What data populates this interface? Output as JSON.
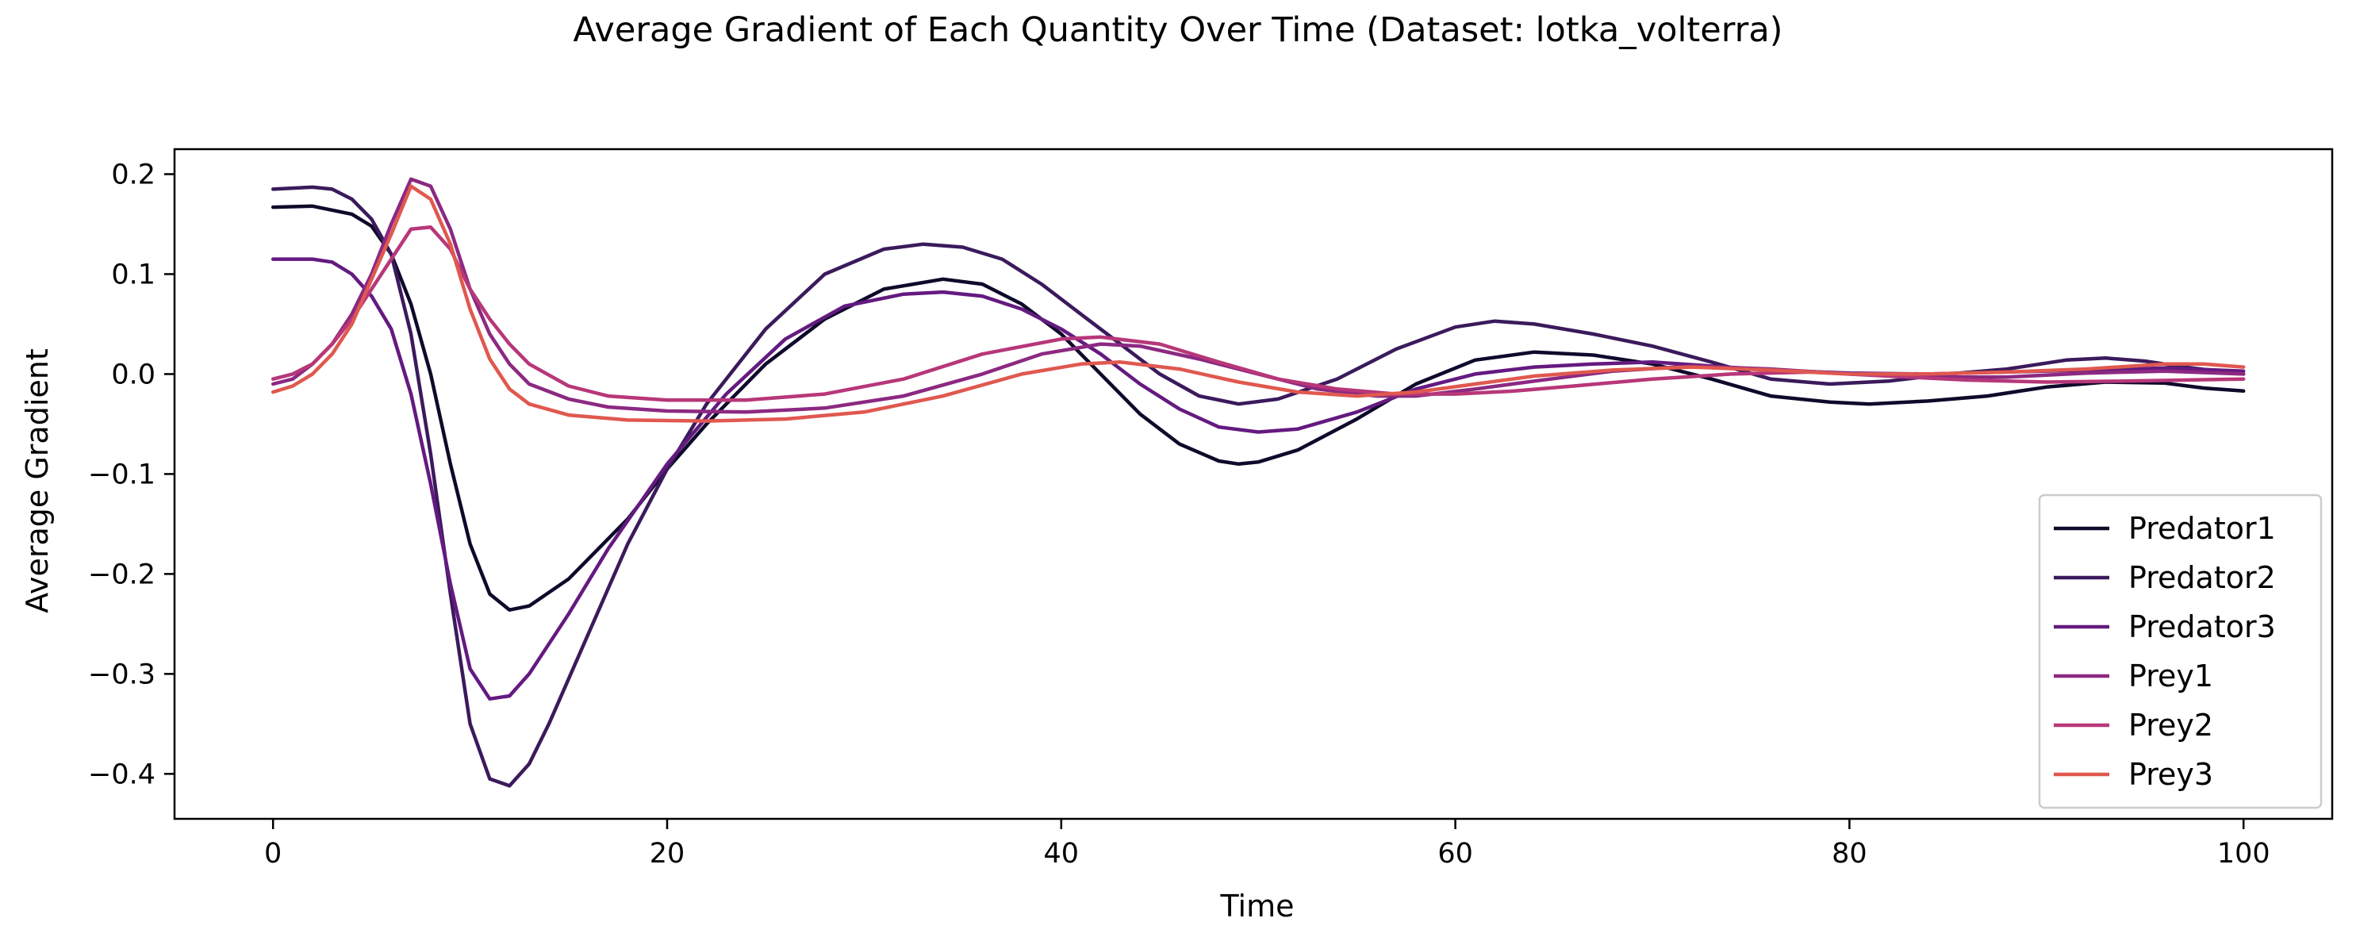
{
  "chart_data": {
    "type": "line",
    "title": "Average Gradient of Each Quantity Over Time (Dataset: lotka_volterra)",
    "xlabel": "Time",
    "ylabel": "Average Gradient",
    "xlim": [
      -5,
      104.5
    ],
    "ylim": [
      -0.445,
      0.225
    ],
    "xticks": [
      0,
      20,
      40,
      60,
      80,
      100
    ],
    "xtick_labels": [
      "0",
      "20",
      "40",
      "60",
      "80",
      "100"
    ],
    "yticks": [
      0.2,
      0.1,
      0.0,
      -0.1,
      -0.2,
      -0.3,
      -0.4
    ],
    "ytick_labels": [
      "0.2",
      "0.1",
      "0.0",
      "−0.1",
      "−0.2",
      "−0.3",
      "−0.4"
    ],
    "grid": false,
    "legend_position": "lower right",
    "series": [
      {
        "name": "Predator1",
        "color": "#0f0a2b",
        "points": [
          [
            0,
            0.167
          ],
          [
            2,
            0.168
          ],
          [
            4,
            0.16
          ],
          [
            5,
            0.148
          ],
          [
            6,
            0.12
          ],
          [
            7,
            0.07
          ],
          [
            8,
            0.0
          ],
          [
            9,
            -0.09
          ],
          [
            10,
            -0.17
          ],
          [
            11,
            -0.22
          ],
          [
            12,
            -0.236
          ],
          [
            13,
            -0.232
          ],
          [
            15,
            -0.205
          ],
          [
            18,
            -0.145
          ],
          [
            20,
            -0.095
          ],
          [
            22,
            -0.05
          ],
          [
            25,
            0.01
          ],
          [
            28,
            0.055
          ],
          [
            31,
            0.085
          ],
          [
            34,
            0.095
          ],
          [
            36,
            0.09
          ],
          [
            38,
            0.07
          ],
          [
            40,
            0.04
          ],
          [
            42,
            0.0
          ],
          [
            44,
            -0.04
          ],
          [
            46,
            -0.07
          ],
          [
            48,
            -0.087
          ],
          [
            49,
            -0.09
          ],
          [
            50,
            -0.088
          ],
          [
            52,
            -0.076
          ],
          [
            55,
            -0.045
          ],
          [
            58,
            -0.01
          ],
          [
            61,
            0.014
          ],
          [
            64,
            0.022
          ],
          [
            67,
            0.019
          ],
          [
            70,
            0.01
          ],
          [
            73,
            -0.005
          ],
          [
            76,
            -0.022
          ],
          [
            79,
            -0.028
          ],
          [
            81,
            -0.03
          ],
          [
            84,
            -0.027
          ],
          [
            87,
            -0.022
          ],
          [
            90,
            -0.013
          ],
          [
            93,
            -0.008
          ],
          [
            96,
            -0.009
          ],
          [
            98,
            -0.014
          ],
          [
            100,
            -0.017
          ]
        ]
      },
      {
        "name": "Predator2",
        "color": "#3b1a5c",
        "points": [
          [
            0,
            0.185
          ],
          [
            2,
            0.187
          ],
          [
            3,
            0.185
          ],
          [
            4,
            0.175
          ],
          [
            5,
            0.155
          ],
          [
            6,
            0.12
          ],
          [
            7,
            0.04
          ],
          [
            8,
            -0.08
          ],
          [
            9,
            -0.22
          ],
          [
            10,
            -0.35
          ],
          [
            11,
            -0.405
          ],
          [
            12,
            -0.412
          ],
          [
            13,
            -0.39
          ],
          [
            14,
            -0.35
          ],
          [
            16,
            -0.26
          ],
          [
            18,
            -0.17
          ],
          [
            20,
            -0.095
          ],
          [
            22,
            -0.03
          ],
          [
            25,
            0.045
          ],
          [
            28,
            0.1
          ],
          [
            31,
            0.125
          ],
          [
            33,
            0.13
          ],
          [
            35,
            0.127
          ],
          [
            37,
            0.115
          ],
          [
            39,
            0.09
          ],
          [
            41,
            0.06
          ],
          [
            43,
            0.03
          ],
          [
            45,
            0.0
          ],
          [
            47,
            -0.022
          ],
          [
            49,
            -0.03
          ],
          [
            51,
            -0.025
          ],
          [
            54,
            -0.005
          ],
          [
            57,
            0.025
          ],
          [
            60,
            0.047
          ],
          [
            62,
            0.053
          ],
          [
            64,
            0.05
          ],
          [
            67,
            0.04
          ],
          [
            70,
            0.028
          ],
          [
            73,
            0.012
          ],
          [
            76,
            -0.005
          ],
          [
            79,
            -0.01
          ],
          [
            82,
            -0.007
          ],
          [
            85,
            0.0
          ],
          [
            88,
            0.005
          ],
          [
            91,
            0.014
          ],
          [
            93,
            0.016
          ],
          [
            95,
            0.013
          ],
          [
            97,
            0.007
          ],
          [
            100,
            0.0
          ]
        ]
      },
      {
        "name": "Predator3",
        "color": "#641a80",
        "points": [
          [
            0,
            0.115
          ],
          [
            2,
            0.115
          ],
          [
            3,
            0.112
          ],
          [
            4,
            0.1
          ],
          [
            5,
            0.078
          ],
          [
            6,
            0.045
          ],
          [
            7,
            -0.02
          ],
          [
            8,
            -0.11
          ],
          [
            9,
            -0.21
          ],
          [
            10,
            -0.295
          ],
          [
            11,
            -0.325
          ],
          [
            12,
            -0.322
          ],
          [
            13,
            -0.3
          ],
          [
            15,
            -0.24
          ],
          [
            17,
            -0.175
          ],
          [
            20,
            -0.09
          ],
          [
            23,
            -0.02
          ],
          [
            26,
            0.035
          ],
          [
            29,
            0.068
          ],
          [
            32,
            0.08
          ],
          [
            34,
            0.082
          ],
          [
            36,
            0.078
          ],
          [
            38,
            0.065
          ],
          [
            40,
            0.045
          ],
          [
            42,
            0.02
          ],
          [
            44,
            -0.01
          ],
          [
            46,
            -0.035
          ],
          [
            48,
            -0.053
          ],
          [
            50,
            -0.058
          ],
          [
            52,
            -0.055
          ],
          [
            55,
            -0.038
          ],
          [
            58,
            -0.015
          ],
          [
            61,
            0.0
          ],
          [
            64,
            0.007
          ],
          [
            67,
            0.01
          ],
          [
            70,
            0.012
          ],
          [
            73,
            0.008
          ],
          [
            76,
            0.004
          ],
          [
            80,
            0.001
          ],
          [
            84,
            0.0
          ],
          [
            88,
            0.002
          ],
          [
            92,
            0.004
          ],
          [
            96,
            0.006
          ],
          [
            100,
            0.003
          ]
        ]
      },
      {
        "name": "Prey1",
        "color": "#8c2981",
        "points": [
          [
            0,
            -0.01
          ],
          [
            1,
            -0.005
          ],
          [
            2,
            0.01
          ],
          [
            3,
            0.03
          ],
          [
            4,
            0.06
          ],
          [
            5,
            0.1
          ],
          [
            6,
            0.15
          ],
          [
            7,
            0.195
          ],
          [
            8,
            0.188
          ],
          [
            9,
            0.145
          ],
          [
            10,
            0.085
          ],
          [
            11,
            0.04
          ],
          [
            12,
            0.01
          ],
          [
            13,
            -0.01
          ],
          [
            15,
            -0.025
          ],
          [
            17,
            -0.033
          ],
          [
            20,
            -0.037
          ],
          [
            24,
            -0.038
          ],
          [
            28,
            -0.034
          ],
          [
            32,
            -0.022
          ],
          [
            36,
            0.0
          ],
          [
            39,
            0.02
          ],
          [
            42,
            0.03
          ],
          [
            44,
            0.028
          ],
          [
            47,
            0.015
          ],
          [
            50,
            0.0
          ],
          [
            53,
            -0.015
          ],
          [
            56,
            -0.022
          ],
          [
            58,
            -0.022
          ],
          [
            61,
            -0.015
          ],
          [
            64,
            -0.007
          ],
          [
            68,
            0.003
          ],
          [
            72,
            0.008
          ],
          [
            76,
            0.005
          ],
          [
            80,
            0.0
          ],
          [
            84,
            -0.003
          ],
          [
            88,
            -0.003
          ],
          [
            92,
            0.001
          ],
          [
            96,
            0.003
          ],
          [
            100,
            0.0
          ]
        ]
      },
      {
        "name": "Prey2",
        "color": "#b73779",
        "points": [
          [
            0,
            -0.005
          ],
          [
            1,
            0.0
          ],
          [
            2,
            0.01
          ],
          [
            3,
            0.03
          ],
          [
            4,
            0.055
          ],
          [
            5,
            0.085
          ],
          [
            6,
            0.115
          ],
          [
            7,
            0.145
          ],
          [
            8,
            0.147
          ],
          [
            9,
            0.125
          ],
          [
            10,
            0.085
          ],
          [
            11,
            0.055
          ],
          [
            12,
            0.03
          ],
          [
            13,
            0.01
          ],
          [
            15,
            -0.012
          ],
          [
            17,
            -0.022
          ],
          [
            20,
            -0.026
          ],
          [
            24,
            -0.026
          ],
          [
            28,
            -0.02
          ],
          [
            32,
            -0.005
          ],
          [
            36,
            0.02
          ],
          [
            40,
            0.035
          ],
          [
            42,
            0.037
          ],
          [
            45,
            0.03
          ],
          [
            48,
            0.012
          ],
          [
            51,
            -0.005
          ],
          [
            54,
            -0.015
          ],
          [
            57,
            -0.02
          ],
          [
            60,
            -0.02
          ],
          [
            63,
            -0.017
          ],
          [
            66,
            -0.012
          ],
          [
            70,
            -0.005
          ],
          [
            74,
            0.0
          ],
          [
            78,
            0.002
          ],
          [
            82,
            -0.002
          ],
          [
            86,
            -0.006
          ],
          [
            90,
            -0.008
          ],
          [
            94,
            -0.007
          ],
          [
            97,
            -0.006
          ],
          [
            100,
            -0.005
          ]
        ]
      },
      {
        "name": "Prey3",
        "color": "#e0584f",
        "points": [
          [
            0,
            -0.018
          ],
          [
            1,
            -0.012
          ],
          [
            2,
            0.0
          ],
          [
            3,
            0.02
          ],
          [
            4,
            0.05
          ],
          [
            5,
            0.095
          ],
          [
            6,
            0.14
          ],
          [
            7,
            0.188
          ],
          [
            8,
            0.175
          ],
          [
            9,
            0.13
          ],
          [
            10,
            0.065
          ],
          [
            11,
            0.015
          ],
          [
            12,
            -0.015
          ],
          [
            13,
            -0.03
          ],
          [
            15,
            -0.041
          ],
          [
            18,
            -0.046
          ],
          [
            22,
            -0.047
          ],
          [
            26,
            -0.045
          ],
          [
            30,
            -0.038
          ],
          [
            34,
            -0.022
          ],
          [
            38,
            0.0
          ],
          [
            41,
            0.01
          ],
          [
            43,
            0.012
          ],
          [
            46,
            0.005
          ],
          [
            49,
            -0.008
          ],
          [
            52,
            -0.018
          ],
          [
            55,
            -0.022
          ],
          [
            58,
            -0.018
          ],
          [
            61,
            -0.01
          ],
          [
            64,
            -0.002
          ],
          [
            68,
            0.004
          ],
          [
            72,
            0.007
          ],
          [
            76,
            0.004
          ],
          [
            80,
            0.0
          ],
          [
            84,
            0.0
          ],
          [
            88,
            0.002
          ],
          [
            92,
            0.005
          ],
          [
            96,
            0.01
          ],
          [
            98,
            0.01
          ],
          [
            100,
            0.007
          ]
        ]
      }
    ]
  }
}
